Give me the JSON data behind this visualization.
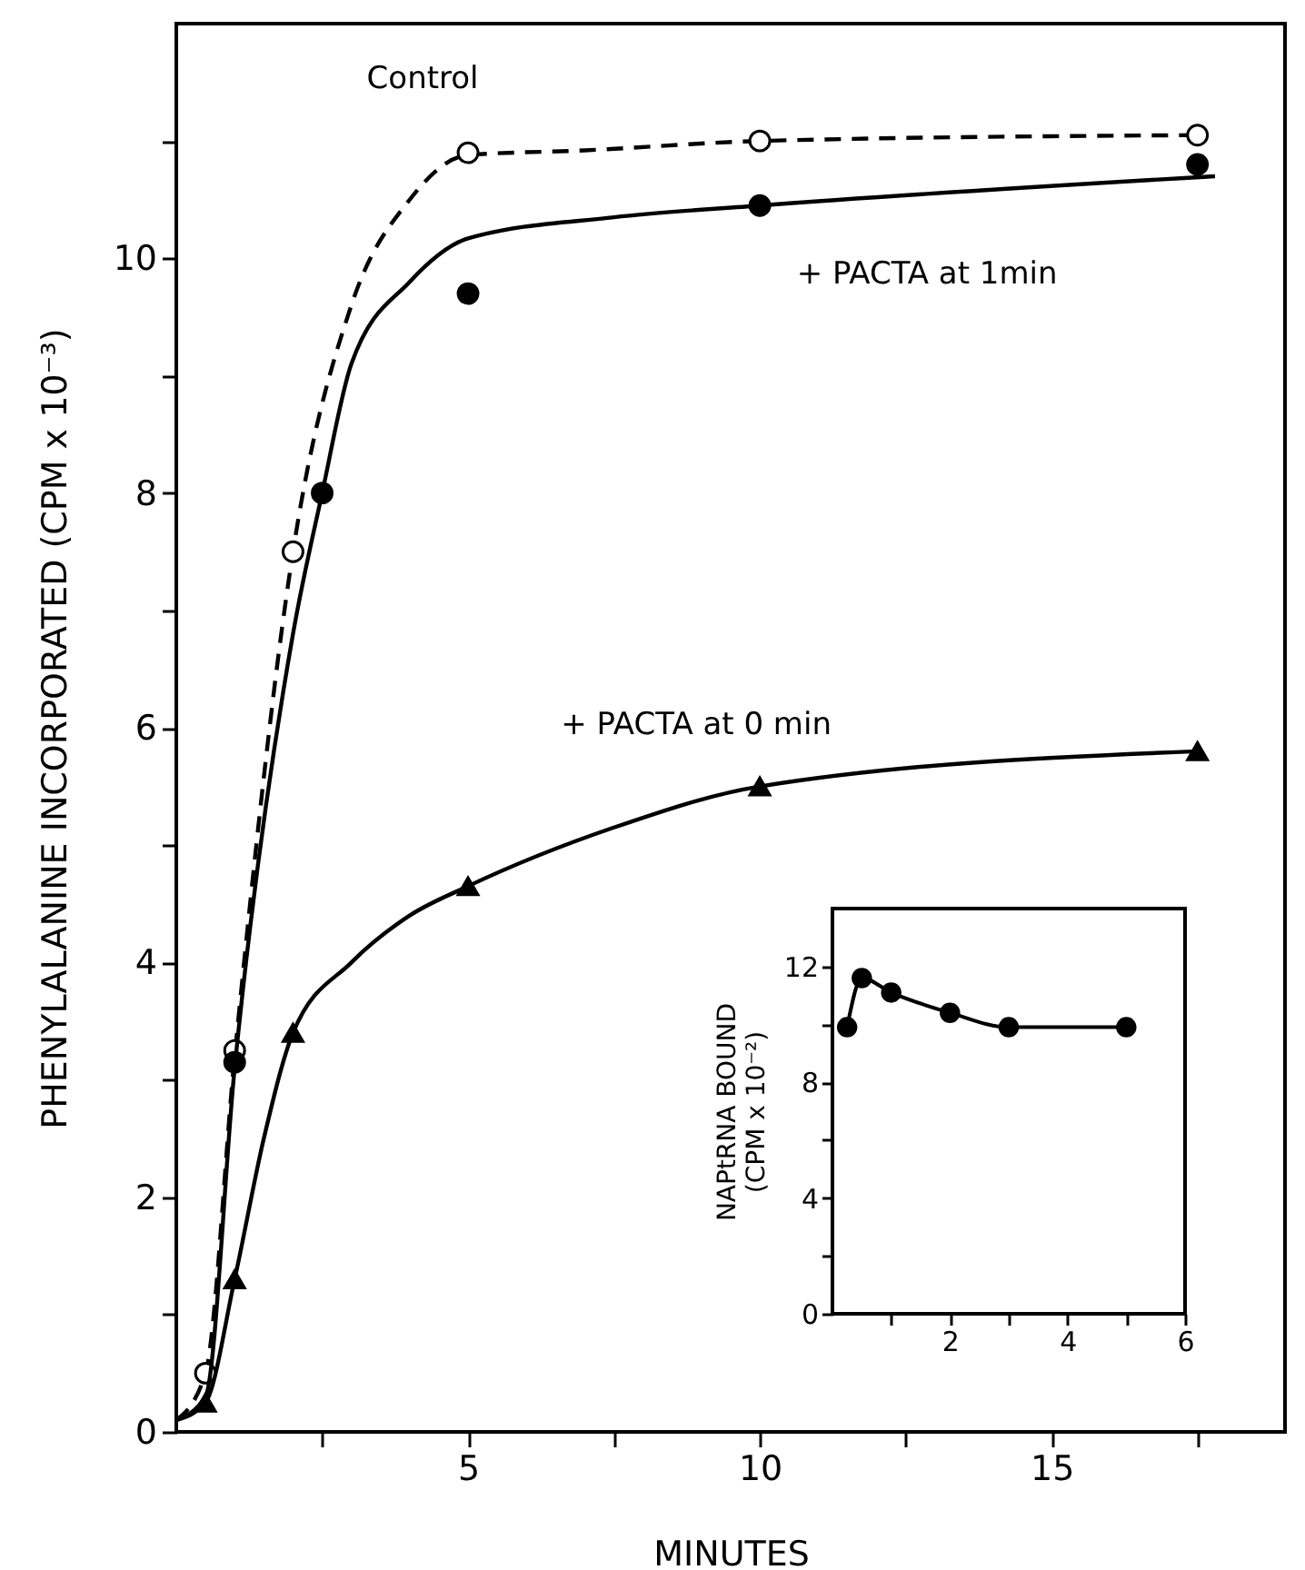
{
  "chart_data": [
    {
      "type": "line",
      "xlabel": "MINUTES",
      "ylabel": "PHENYLALANINE  INCORPORATED  (CPM x 10⁻³)",
      "xlim": [
        0,
        19
      ],
      "ylim": [
        0,
        12
      ],
      "xticks": [
        {
          "value": 2.5,
          "label": null
        },
        5,
        {
          "value": 7.5,
          "label": null
        },
        10,
        {
          "value": 12.5,
          "label": null
        },
        15,
        {
          "value": 17.5,
          "label": null
        }
      ],
      "yticks": [
        0,
        {
          "value": 1,
          "label": null
        },
        2,
        {
          "value": 3,
          "label": null
        },
        4,
        {
          "value": 5,
          "label": null
        },
        6,
        {
          "value": 7,
          "label": null
        },
        8,
        {
          "value": 9,
          "label": null
        },
        10,
        {
          "value": 11,
          "label": null
        }
      ],
      "grid": false,
      "series": [
        {
          "name": "Control",
          "type": "line",
          "line_style": "dashed",
          "marker": "none",
          "color": "#000000",
          "x": [
            0,
            0.5,
            1,
            2,
            3,
            4,
            5,
            7,
            10,
            17.5
          ],
          "values": [
            0.1,
            0.5,
            3.2,
            7.5,
            9.6,
            10.5,
            10.88,
            10.92,
            11.0,
            11.05
          ]
        },
        {
          "type": "scatter",
          "marker": "circle",
          "color": "#ffffff",
          "x": [
            0.5,
            1,
            2,
            5,
            10,
            17.5
          ],
          "values": [
            0.5,
            3.25,
            7.5,
            10.9,
            11.0,
            11.05
          ]
        },
        {
          "name": "+ PACTA at 1min",
          "type": "line",
          "line_style": "solid",
          "marker": "none",
          "color": "#000000",
          "x": [
            0,
            0.5,
            1,
            2,
            2.5,
            3,
            4,
            5,
            7.5,
            10,
            17.8
          ],
          "values": [
            0.1,
            0.3,
            3.1,
            6.8,
            8.0,
            9.1,
            9.8,
            10.17,
            10.35,
            10.45,
            10.7
          ]
        },
        {
          "type": "scatter",
          "marker": "circle",
          "color": "#000000",
          "x": [
            1,
            2.5,
            5,
            10,
            17.5
          ],
          "values": [
            3.15,
            8.0,
            9.7,
            10.45,
            10.8
          ]
        },
        {
          "name": "+ PACTA at 0 min",
          "type": "line",
          "line_style": "solid",
          "marker": "none",
          "color": "#000000",
          "x": [
            0,
            0.5,
            1,
            1.5,
            2,
            3,
            4,
            5,
            7.5,
            10,
            17.5
          ],
          "values": [
            0.1,
            0.25,
            1.3,
            2.5,
            3.4,
            4.0,
            4.4,
            4.65,
            5.15,
            5.5,
            5.8
          ]
        },
        {
          "type": "scatter",
          "marker": "triangle",
          "color": "#000000",
          "x": [
            0.5,
            1,
            2,
            5,
            10,
            17.5
          ],
          "values": [
            0.25,
            1.3,
            3.4,
            4.65,
            5.5,
            5.8
          ]
        }
      ]
    },
    {
      "type": "line",
      "ylabel": "NAPtRNA  BOUND\n(CPM x 10⁻²)",
      "xlim": [
        0,
        6
      ],
      "ylim": [
        0,
        14
      ],
      "xticks": [
        {
          "value": 1,
          "label": null
        },
        2,
        {
          "value": 3,
          "label": null
        },
        4,
        {
          "value": 5,
          "label": null
        },
        6
      ],
      "yticks": [
        0,
        {
          "value": 2,
          "label": null
        },
        4,
        {
          "value": 6,
          "label": null
        },
        8,
        {
          "value": 10,
          "label": null
        },
        12
      ],
      "grid": false,
      "marker": "circle",
      "line_style": "solid",
      "series": [
        {
          "color": "#000000",
          "x": [
            0.25,
            0.5,
            1,
            2,
            3,
            5
          ],
          "values": [
            9.9,
            11.6,
            11.1,
            10.4,
            9.9,
            9.9
          ]
        }
      ]
    }
  ]
}
